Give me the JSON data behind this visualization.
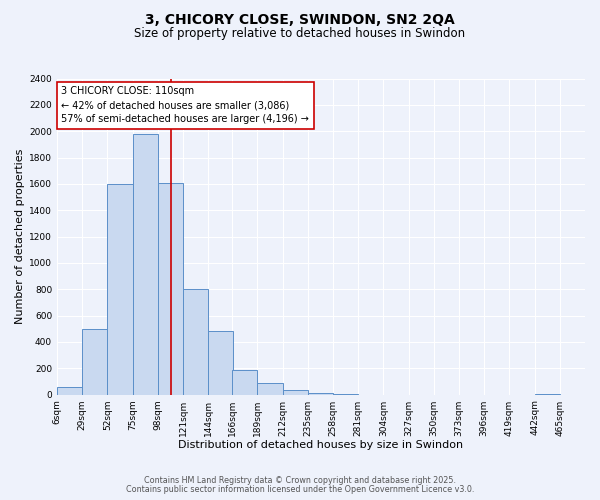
{
  "title": "3, CHICORY CLOSE, SWINDON, SN2 2QA",
  "subtitle": "Size of property relative to detached houses in Swindon",
  "xlabel": "Distribution of detached houses by size in Swindon",
  "ylabel": "Number of detached properties",
  "bar_left_edges": [
    6,
    29,
    52,
    75,
    98,
    121,
    144,
    166,
    189,
    212,
    235,
    258,
    281,
    304,
    327,
    350,
    373,
    396,
    419,
    442
  ],
  "bar_heights": [
    55,
    500,
    1600,
    1975,
    1610,
    800,
    480,
    190,
    90,
    35,
    15,
    5,
    0,
    0,
    0,
    0,
    0,
    0,
    0,
    5
  ],
  "bin_width": 23,
  "bar_color": "#c9d9f0",
  "bar_edge_color": "#5b8fc9",
  "property_line_x": 110,
  "property_line_color": "#cc0000",
  "annotation_text": "3 CHICORY CLOSE: 110sqm\n← 42% of detached houses are smaller (3,086)\n57% of semi-detached houses are larger (4,196) →",
  "annotation_box_color": "#ffffff",
  "annotation_box_edge_color": "#cc0000",
  "xlim": [
    6,
    488
  ],
  "ylim": [
    0,
    2400
  ],
  "yticks": [
    0,
    200,
    400,
    600,
    800,
    1000,
    1200,
    1400,
    1600,
    1800,
    2000,
    2200,
    2400
  ],
  "xtick_labels": [
    "6sqm",
    "29sqm",
    "52sqm",
    "75sqm",
    "98sqm",
    "121sqm",
    "144sqm",
    "166sqm",
    "189sqm",
    "212sqm",
    "235sqm",
    "258sqm",
    "281sqm",
    "304sqm",
    "327sqm",
    "350sqm",
    "373sqm",
    "396sqm",
    "419sqm",
    "442sqm",
    "465sqm"
  ],
  "xtick_positions": [
    6,
    29,
    52,
    75,
    98,
    121,
    144,
    166,
    189,
    212,
    235,
    258,
    281,
    304,
    327,
    350,
    373,
    396,
    419,
    442,
    465
  ],
  "footer1": "Contains HM Land Registry data © Crown copyright and database right 2025.",
  "footer2": "Contains public sector information licensed under the Open Government Licence v3.0.",
  "bg_color": "#eef2fb",
  "grid_color": "#ffffff",
  "title_fontsize": 10,
  "subtitle_fontsize": 8.5,
  "tick_fontsize": 6.5,
  "label_fontsize": 8,
  "footer_fontsize": 5.8,
  "annot_fontsize": 7
}
